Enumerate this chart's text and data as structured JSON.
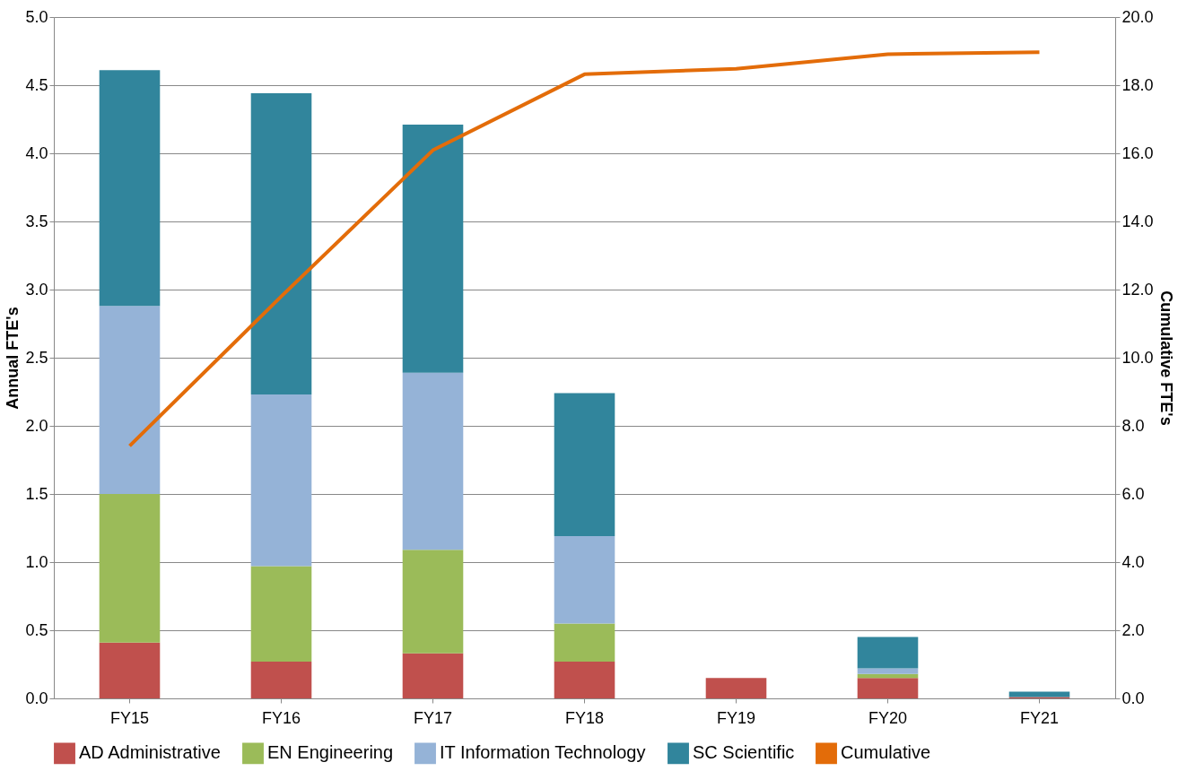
{
  "chart_data": {
    "type": "bar",
    "stacked": true,
    "ylabel": "Annual FTE's",
    "y2label": "Cumulative FTE's",
    "categories": [
      "FY15",
      "FY16",
      "FY17",
      "FY18",
      "FY19",
      "FY20",
      "FY21"
    ],
    "series": [
      {
        "name": "AD Administrative",
        "color": "#c0504d",
        "values": [
          0.41,
          0.27,
          0.33,
          0.27,
          0.15,
          0.15,
          0.01
        ]
      },
      {
        "name": "EN Engineering",
        "color": "#9bbb59",
        "values": [
          1.09,
          0.7,
          0.76,
          0.28,
          0,
          0.03,
          0
        ]
      },
      {
        "name": "IT Information Technology",
        "color": "#95b3d7",
        "values": [
          1.38,
          1.26,
          1.3,
          0.64,
          0,
          0.04,
          0
        ]
      },
      {
        "name": "SC Scientific",
        "color": "#31859c",
        "values": [
          1.73,
          2.21,
          1.82,
          1.05,
          0,
          0.23,
          0.04
        ]
      },
      {
        "name": "Cumulative",
        "color": "#e36c09",
        "type": "line",
        "axis": "y2",
        "values": [
          7.41,
          11.8,
          16.09,
          18.32,
          18.48,
          18.91,
          18.97
        ]
      }
    ],
    "ylim": [
      0,
      5
    ],
    "yticks": [
      {
        "value": 0,
        "label": "0.0"
      },
      {
        "value": 0.5,
        "label": "0.5"
      },
      {
        "value": 1,
        "label": "1.0"
      },
      {
        "value": 1.5,
        "label": "1.5"
      },
      {
        "value": 2,
        "label": "2.0"
      },
      {
        "value": 2.5,
        "label": "2.5"
      },
      {
        "value": 3,
        "label": "3.0"
      },
      {
        "value": 3.5,
        "label": "3.5"
      },
      {
        "value": 4,
        "label": "4.0"
      },
      {
        "value": 4.5,
        "label": "4.5"
      },
      {
        "value": 5,
        "label": "5.0"
      }
    ],
    "y2lim": [
      0,
      20
    ],
    "y2ticks": [
      {
        "value": 0,
        "label": "0.0"
      },
      {
        "value": 2,
        "label": "2.0"
      },
      {
        "value": 4,
        "label": "4.0"
      },
      {
        "value": 6,
        "label": "6.0"
      },
      {
        "value": 8,
        "label": "8.0"
      },
      {
        "value": 10,
        "label": "10.0"
      },
      {
        "value": 12,
        "label": "12.0"
      },
      {
        "value": 14,
        "label": "14.0"
      },
      {
        "value": 16,
        "label": "16.0"
      },
      {
        "value": 18,
        "label": "18.0"
      },
      {
        "value": 20,
        "label": "20.0"
      }
    ],
    "grid": "y",
    "legend": "bottom"
  }
}
